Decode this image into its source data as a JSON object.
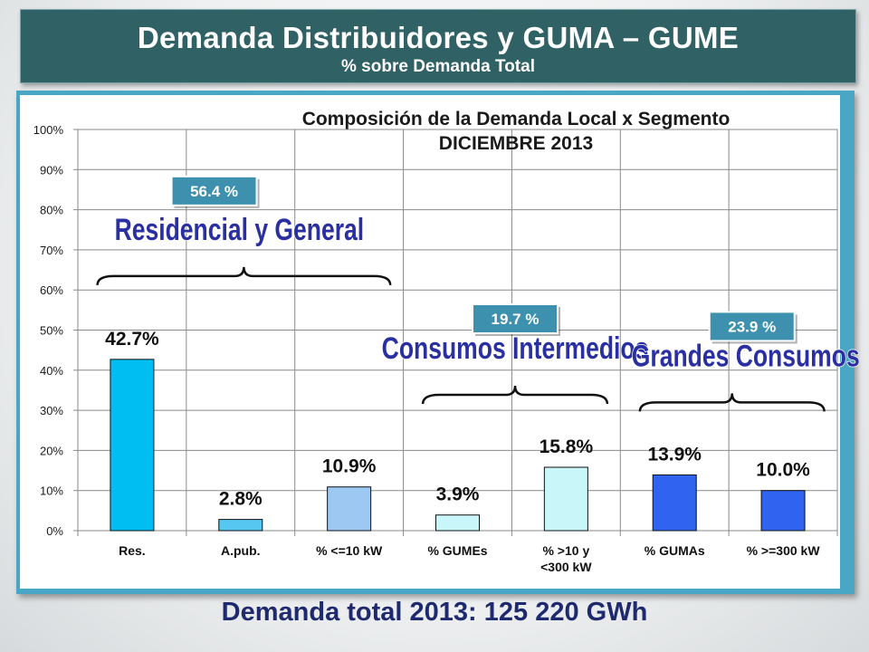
{
  "header": {
    "title": "Demanda Distribuidores y GUMA – GUME",
    "subtitle": "% sobre Demanda Total"
  },
  "footer": {
    "text": "Demanda total 2013: 125 220 GWh"
  },
  "chart_data": {
    "type": "bar",
    "title": "Composición de la Demanda Local x Segmento",
    "subtitle": "DICIEMBRE 2013",
    "categories": [
      "Res.",
      "A.pub.",
      "% <=10 kW",
      "% GUMEs",
      "% >10 y <300 kW",
      "% GUMAs",
      "% >=300 kW"
    ],
    "values": [
      42.7,
      2.8,
      10.9,
      3.9,
      15.8,
      13.9,
      10.0
    ],
    "data_labels": [
      "42.7%",
      "2.8%",
      "10.9%",
      "3.9%",
      "15.8%",
      "13.9%",
      "10.0%"
    ],
    "bar_colors": [
      "#00bdf2",
      "#55c7f0",
      "#9cc8f2",
      "#c9f6f8",
      "#c9f6f8",
      "#2f63f0",
      "#2f63f0"
    ],
    "ylim": [
      0,
      100
    ],
    "yticks": [
      "0%",
      "10%",
      "20%",
      "30%",
      "40%",
      "50%",
      "60%",
      "70%",
      "80%",
      "90%",
      "100%"
    ],
    "grid": true,
    "groups": [
      {
        "name": "Residencial y General",
        "value_label": "56.4 %",
        "first": 0,
        "last": 2
      },
      {
        "name": "Consumos Intermedios",
        "value_label": "19.7 %",
        "first": 3,
        "last": 4
      },
      {
        "name": "Grandes Consumos",
        "value_label": "23.9 %",
        "first": 5,
        "last": 6
      }
    ],
    "colors": {
      "group_name_fill": "#2a2fa2",
      "group_name_outline": "#ffffff",
      "group_badge": "#3d91af"
    }
  }
}
